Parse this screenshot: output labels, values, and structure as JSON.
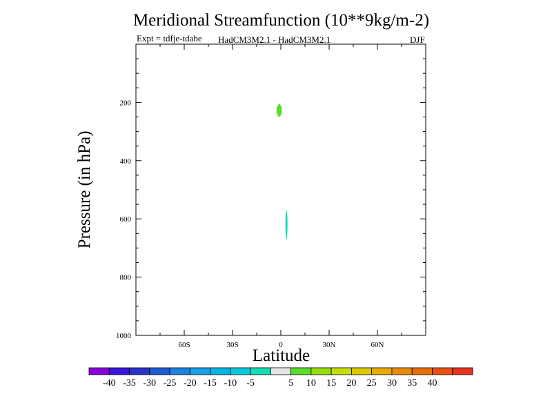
{
  "header": {
    "title": "Meridional Streamfunction (10**9kg/m-2)",
    "experiment": "Expt = tdfje-tdabe",
    "model": "HadCM3M2.1 - HadCM3M2.1",
    "season": "DJF"
  },
  "chart_data": {
    "type": "contour",
    "title": "Meridional Streamfunction (10**9kg/m-2)",
    "xlabel": "Latitude",
    "ylabel": "Pressure (in hPa)",
    "xlim": [
      -90,
      90
    ],
    "ylim": [
      0,
      1000
    ],
    "y_inverted": true,
    "x_ticks": [
      {
        "value": -60,
        "label": "60S"
      },
      {
        "value": -30,
        "label": "30S"
      },
      {
        "value": 0,
        "label": "0"
      },
      {
        "value": 30,
        "label": "30N"
      },
      {
        "value": 60,
        "label": "60N"
      }
    ],
    "y_ticks": [
      {
        "value": 200,
        "label": "200"
      },
      {
        "value": 400,
        "label": "400"
      },
      {
        "value": 600,
        "label": "600"
      },
      {
        "value": 800,
        "label": "800"
      },
      {
        "value": 1000,
        "label": "1000"
      }
    ],
    "colorbar": {
      "colors": [
        "#8a00dc",
        "#3c14dc",
        "#2832c8",
        "#1e5ad2",
        "#1e82dc",
        "#18a0e6",
        "#0ab4e6",
        "#0ac8dc",
        "#14dcb4",
        "#e6e6e6",
        "#5adc28",
        "#96dc0a",
        "#c8dc0a",
        "#dcc800",
        "#e6aa00",
        "#e68c0a",
        "#e66e0a",
        "#e65014",
        "#e6321e"
      ],
      "labels": [
        "-40",
        "-35",
        "-30",
        "-25",
        "-20",
        "-15",
        "-10",
        "-5",
        "5",
        "10",
        "15",
        "20",
        "25",
        "30",
        "35",
        "40"
      ]
    },
    "features": [
      {
        "name": "positive-anomaly",
        "lat": -1,
        "pressure_min": 205,
        "pressure_max": 250,
        "level": "5 to 10",
        "color": "#5adc28"
      },
      {
        "name": "negative-anomaly",
        "lat": 3.5,
        "pressure_min": 570,
        "pressure_max": 670,
        "level": "-10 to -5",
        "color": "#14dcb4"
      }
    ]
  }
}
